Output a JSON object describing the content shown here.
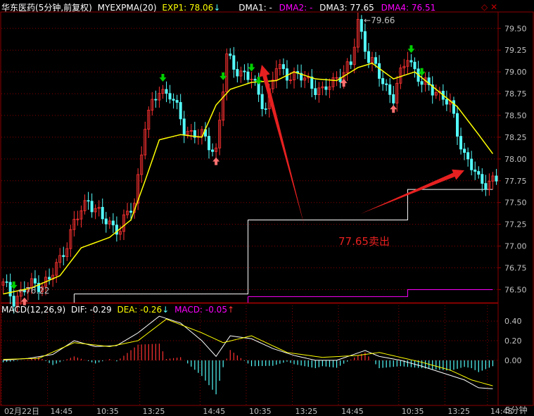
{
  "header": {
    "stock_name": "华东医药",
    "period_note": "(5分钟,前复权)",
    "indicator": "MYEXPMA(20)",
    "exp1_label": "EXP1: 78.06",
    "dma1_label": "DMA1: -",
    "dma2_label": "DMA2: -",
    "dma3_label": "DMA3: 77.65",
    "dma4_label": "DMA4: 76.51"
  },
  "macd_header": {
    "name": "MACD(12,26,9)",
    "dif_label": "DIF: -0.29",
    "dea_label": "DEA: -0.26",
    "macd_label": "MACD: -0.05"
  },
  "annotations": {
    "high_label": "79.66",
    "low_label": "76.22",
    "sell_note": "77.65卖出"
  },
  "period_label": "5分钟",
  "colors": {
    "up": "#ff3232",
    "down": "#54fcfc",
    "ema": "#ffff00",
    "dma3": "#ffffff",
    "dma4": "#ff00ff",
    "grid": "#8b0000",
    "axis_text": "#c0c0c0",
    "arrow": "#e62020",
    "buy_arrow": "#00d000"
  },
  "chart_data": [
    {
      "type": "candlestick",
      "ylim": [
        76.35,
        79.68
      ],
      "y_ticks": [
        "79.50",
        "79.25",
        "79.00",
        "78.75",
        "78.50",
        "78.25",
        "78.00",
        "77.75",
        "77.50",
        "77.25",
        "77.00",
        "76.75",
        "76.50"
      ],
      "x_ticks": [
        "02月22日",
        "14:45",
        "10:35",
        "13:25",
        "14:45",
        "10:35",
        "13:25",
        "14:45",
        "10:35",
        "13:25",
        "14:45"
      ],
      "grid": true,
      "anchors": {
        "price": [
          [
            0,
            76.55
          ],
          [
            3,
            76.4
          ],
          [
            8,
            76.55
          ],
          [
            13,
            76.6
          ],
          [
            16,
            76.85
          ],
          [
            20,
            77.25
          ],
          [
            24,
            77.55
          ],
          [
            28,
            77.3
          ],
          [
            33,
            77.2
          ],
          [
            37,
            77.5
          ],
          [
            40,
            78.4
          ],
          [
            44,
            78.8
          ],
          [
            47,
            78.75
          ],
          [
            51,
            78.35
          ],
          [
            56,
            78.25
          ],
          [
            60,
            78.1
          ],
          [
            63,
            79.15
          ],
          [
            67,
            79.0
          ],
          [
            70,
            78.9
          ],
          [
            74,
            78.6
          ],
          [
            77,
            79.05
          ],
          [
            82,
            78.95
          ],
          [
            86,
            78.9
          ],
          [
            90,
            78.75
          ],
          [
            94,
            78.95
          ],
          [
            98,
            79.05
          ],
          [
            100,
            79.6
          ],
          [
            103,
            79.15
          ],
          [
            107,
            78.9
          ],
          [
            110,
            78.7
          ],
          [
            114,
            79.2
          ],
          [
            118,
            78.85
          ],
          [
            122,
            78.8
          ],
          [
            126,
            78.6
          ],
          [
            130,
            78.05
          ],
          [
            134,
            77.75
          ],
          [
            138,
            77.75
          ]
        ],
        "ema": [
          [
            0,
            76.45
          ],
          [
            8,
            76.52
          ],
          [
            16,
            76.66
          ],
          [
            22,
            76.98
          ],
          [
            30,
            77.1
          ],
          [
            36,
            77.3
          ],
          [
            40,
            77.75
          ],
          [
            44,
            78.22
          ],
          [
            50,
            78.28
          ],
          [
            56,
            78.25
          ],
          [
            60,
            78.62
          ],
          [
            64,
            78.8
          ],
          [
            70,
            78.88
          ],
          [
            77,
            78.9
          ],
          [
            82,
            79.0
          ],
          [
            88,
            78.92
          ],
          [
            94,
            78.9
          ],
          [
            100,
            79.05
          ],
          [
            104,
            79.1
          ],
          [
            110,
            78.92
          ],
          [
            116,
            79.0
          ],
          [
            122,
            78.8
          ],
          [
            128,
            78.6
          ],
          [
            134,
            78.28
          ],
          [
            138,
            78.06
          ]
        ]
      },
      "dma3": {
        "values": [
          76.45,
          77.3,
          77.65
        ],
        "breaks": [
          69,
          114
        ]
      },
      "dma4": {
        "values": [
          76.42,
          76.5
        ],
        "breaks": [
          114
        ]
      },
      "markers": {
        "buy": [
          3,
          45,
          62,
          70,
          72,
          115,
          118
        ],
        "sell": [
          6,
          60,
          96,
          110
        ]
      },
      "arrows": [
        [
          [
            433,
            322
          ],
          [
            372,
            92
          ]
        ],
        [
          [
            512,
            304
          ],
          [
            660,
            242
          ]
        ]
      ],
      "bars": 140
    },
    {
      "type": "line",
      "title": "MACD(12,26,9)",
      "ylim": [
        -0.46,
        0.48
      ],
      "y_ticks": [
        "0.40",
        "0.20",
        "0.00"
      ],
      "series": [
        {
          "name": "DIF",
          "anchors": [
            [
              0,
              0.0
            ],
            [
              7,
              0.02
            ],
            [
              14,
              0.06
            ],
            [
              20,
              0.2
            ],
            [
              26,
              0.14
            ],
            [
              32,
              0.15
            ],
            [
              38,
              0.28
            ],
            [
              44,
              0.45
            ],
            [
              50,
              0.38
            ],
            [
              56,
              0.2
            ],
            [
              60,
              0.04
            ],
            [
              64,
              0.25
            ],
            [
              70,
              0.22
            ],
            [
              76,
              0.12
            ],
            [
              82,
              0.05
            ],
            [
              88,
              0.0
            ],
            [
              94,
              0.0
            ],
            [
              98,
              0.05
            ],
            [
              102,
              0.1
            ],
            [
              106,
              0.04
            ],
            [
              112,
              0.0
            ],
            [
              118,
              -0.06
            ],
            [
              124,
              -0.13
            ],
            [
              130,
              -0.2
            ],
            [
              134,
              -0.28
            ],
            [
              138,
              -0.29
            ]
          ]
        },
        {
          "name": "DEA",
          "anchors": [
            [
              0,
              0.01
            ],
            [
              10,
              0.02
            ],
            [
              20,
              0.18
            ],
            [
              30,
              0.14
            ],
            [
              38,
              0.2
            ],
            [
              46,
              0.42
            ],
            [
              56,
              0.28
            ],
            [
              62,
              0.18
            ],
            [
              70,
              0.25
            ],
            [
              80,
              0.08
            ],
            [
              90,
              0.03
            ],
            [
              100,
              0.05
            ],
            [
              106,
              0.08
            ],
            [
              112,
              0.03
            ],
            [
              118,
              -0.02
            ],
            [
              126,
              -0.1
            ],
            [
              132,
              -0.2
            ],
            [
              138,
              -0.26
            ]
          ]
        }
      ]
    }
  ]
}
